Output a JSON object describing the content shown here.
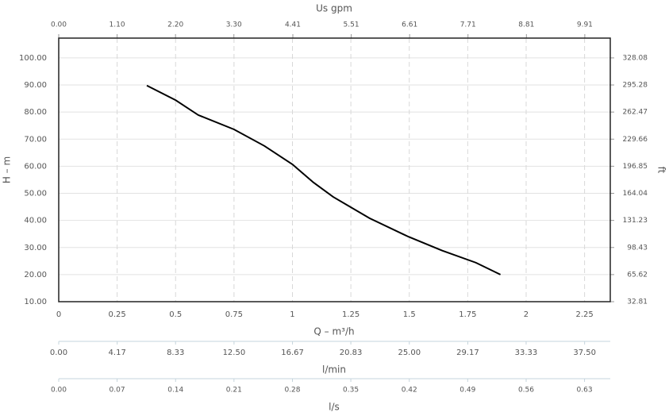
{
  "chart_data": {
    "type": "line",
    "x_label": "Q – m³/h",
    "y_label": "H – m",
    "y2_label": "ft",
    "x": [
      0.377,
      0.5,
      0.597,
      0.75,
      0.88,
      1.0,
      1.09,
      1.174,
      1.33,
      1.496,
      1.64,
      1.785,
      1.89
    ],
    "values": [
      89.8,
      84.4,
      78.9,
      73.6,
      67.5,
      60.7,
      54.0,
      48.7,
      40.8,
      34.0,
      28.9,
      24.4,
      20.0
    ],
    "color": "#000000",
    "xlim": [
      0,
      2.36
    ],
    "xticks": [
      0,
      0.25,
      0.5,
      0.75,
      1,
      1.25,
      1.5,
      1.75,
      2,
      2.25
    ],
    "ylim": [
      10,
      107.3
    ],
    "yticks": [
      {
        "value": 10,
        "label": "10.00"
      },
      {
        "value": 20,
        "label": "20.00"
      },
      {
        "value": 30,
        "label": "30.00"
      },
      {
        "value": 40,
        "label": "40.00"
      },
      {
        "value": 50,
        "label": "50.00"
      },
      {
        "value": 60,
        "label": "60.00"
      },
      {
        "value": 70,
        "label": "70.00"
      },
      {
        "value": 80,
        "label": "80.00"
      },
      {
        "value": 90,
        "label": "90.00"
      },
      {
        "value": 100,
        "label": "100.00"
      }
    ],
    "y2lim": [
      32.81,
      352.03
    ],
    "y2ticks": [
      32.81,
      65.62,
      98.43,
      131.23,
      164.04,
      196.85,
      229.66,
      262.47,
      295.28,
      328.08
    ],
    "grid": true,
    "top_axis": {
      "label": "Us gpm",
      "xlim": [
        0,
        10.39
      ],
      "xticks": [
        {
          "value": 0,
          "label": "0.00"
        },
        {
          "value": 1.1,
          "label": "1.10"
        },
        {
          "value": 2.2,
          "label": "2.20"
        },
        {
          "value": 3.3,
          "label": "3.30"
        },
        {
          "value": 4.41,
          "label": "4.41"
        },
        {
          "value": 5.51,
          "label": "5.51"
        },
        {
          "value": 6.61,
          "label": "6.61"
        },
        {
          "value": 7.71,
          "label": "7.71"
        },
        {
          "value": 8.81,
          "label": "8.81"
        },
        {
          "value": 9.91,
          "label": "9.91"
        }
      ]
    },
    "extra_axes": [
      {
        "label": "l/min",
        "xlim": [
          0,
          39.33
        ],
        "xticks": [
          {
            "value": 0,
            "label": "0.00"
          },
          {
            "value": 4.17,
            "label": "4.17"
          },
          {
            "value": 8.33,
            "label": "8.33"
          },
          {
            "value": 12.5,
            "label": "12.50"
          },
          {
            "value": 16.67,
            "label": "16.67"
          },
          {
            "value": 20.83,
            "label": "20.83"
          },
          {
            "value": 25,
            "label": "25.00"
          },
          {
            "value": 29.17,
            "label": "29.17"
          },
          {
            "value": 33.33,
            "label": "33.33"
          },
          {
            "value": 37.5,
            "label": "37.50"
          }
        ]
      },
      {
        "label": "l/s",
        "xlim": [
          0,
          0.6556
        ],
        "xticks": [
          {
            "value": 0,
            "label": "0.00"
          },
          {
            "value": 0.0694,
            "label": "0.07"
          },
          {
            "value": 0.1389,
            "label": "0.14"
          },
          {
            "value": 0.2083,
            "label": "0.21"
          },
          {
            "value": 0.2778,
            "label": "0.28"
          },
          {
            "value": 0.3472,
            "label": "0.35"
          },
          {
            "value": 0.4167,
            "label": "0.42"
          },
          {
            "value": 0.4861,
            "label": "0.49"
          },
          {
            "value": 0.5556,
            "label": "0.56"
          },
          {
            "value": 0.625,
            "label": "0.63"
          }
        ]
      }
    ]
  }
}
